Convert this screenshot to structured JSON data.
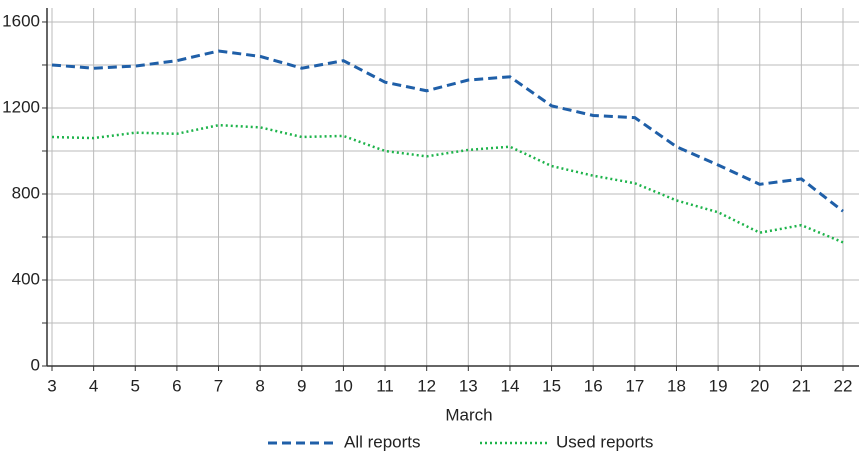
{
  "chart_data": {
    "type": "line",
    "x_label": "March",
    "categories": [
      "3",
      "4",
      "5",
      "6",
      "7",
      "8",
      "9",
      "10",
      "11",
      "12",
      "13",
      "14",
      "15",
      "16",
      "17",
      "18",
      "19",
      "20",
      "21",
      "22"
    ],
    "series": [
      {
        "name": "All reports",
        "color": "#1f5fa8",
        "dash": "dashed",
        "values": [
          1400,
          1385,
          1395,
          1420,
          1465,
          1440,
          1385,
          1420,
          1320,
          1280,
          1330,
          1345,
          1210,
          1165,
          1155,
          1020,
          935,
          845,
          870,
          720
        ]
      },
      {
        "name": "Used reports",
        "color": "#1db34a",
        "dash": "dotted",
        "values": [
          1065,
          1060,
          1085,
          1080,
          1120,
          1110,
          1065,
          1070,
          1000,
          975,
          1005,
          1020,
          930,
          885,
          850,
          770,
          715,
          620,
          655,
          575
        ]
      }
    ],
    "ylim": [
      0,
      1665
    ],
    "yticks": [
      0,
      400,
      800,
      1200,
      1600
    ],
    "yticks_minor": [
      200,
      600,
      1000,
      1400
    ],
    "grid": true,
    "legend": "bottom"
  }
}
